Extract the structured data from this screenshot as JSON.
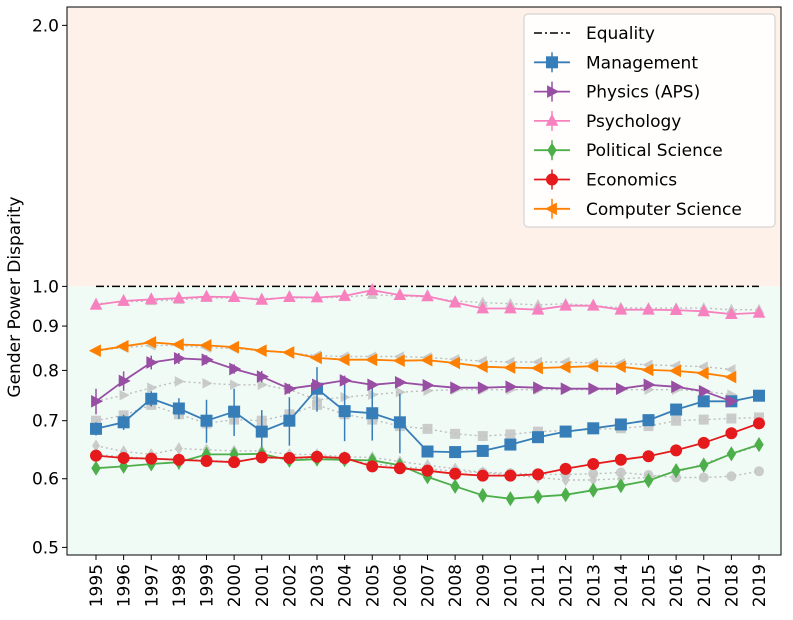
{
  "chart_data": {
    "type": "line",
    "ylabel": "Gender Power Disparity",
    "y_scale": "log",
    "ylim": [
      0.49,
      2.1
    ],
    "yticks": [
      0.5,
      0.6,
      0.7,
      0.8,
      0.9,
      1.0,
      2.0
    ],
    "ytick_labels": [
      "0.5",
      "0.6",
      "0.7",
      "0.8",
      "0.9",
      "1.0",
      "2.0"
    ],
    "x": [
      "1995",
      "1996",
      "1997",
      "1998",
      "1999",
      "2000",
      "2001",
      "2002",
      "2003",
      "2004",
      "2005",
      "2006",
      "2007",
      "2008",
      "2009",
      "2010",
      "2011",
      "2012",
      "2013",
      "2014",
      "2015",
      "2016",
      "2017",
      "2018",
      "2019"
    ],
    "region_colors": {
      "above": "#fdf1ea",
      "below": "#f1fbf6"
    },
    "legend_position": "top-right",
    "equality": {
      "name": "Equality",
      "value": 1.0,
      "color": "#000000"
    },
    "series": [
      {
        "name": "Management",
        "color": "#377eb8",
        "marker": "s",
        "values": [
          0.685,
          0.697,
          0.742,
          0.723,
          0.7,
          0.717,
          0.68,
          0.7,
          0.762,
          0.718,
          0.714,
          0.697,
          0.645,
          0.644,
          0.646,
          0.657,
          0.67,
          0.68,
          0.686,
          0.693,
          0.701,
          0.721,
          0.737,
          0.737,
          0.748
        ],
        "errors": [
          0.012,
          0.014,
          0.015,
          0.02,
          0.04,
          0.045,
          0.04,
          0.045,
          0.045,
          0.055,
          0.05,
          0.055,
          0.006,
          0.006,
          0.006,
          0.008,
          0.01,
          0.006,
          0.006,
          0.006,
          0.008,
          0.008,
          0.008,
          0.006,
          0.006
        ],
        "baseline": [
          0.7,
          0.71,
          0.73,
          0.712,
          0.695,
          0.702,
          0.7,
          0.712,
          0.73,
          0.712,
          0.702,
          0.69,
          0.685,
          0.676,
          0.672,
          0.675,
          0.68,
          0.682,
          0.684,
          0.686,
          0.69,
          0.7,
          0.702,
          0.704,
          0.706
        ]
      },
      {
        "name": "Physics (APS)",
        "color": "#984ea3",
        "marker": ">",
        "values": [
          0.737,
          0.778,
          0.817,
          0.826,
          0.823,
          0.803,
          0.787,
          0.762,
          0.77,
          0.779,
          0.77,
          0.775,
          0.769,
          0.764,
          0.764,
          0.766,
          0.764,
          0.762,
          0.762,
          0.762,
          0.77,
          0.766,
          0.757,
          0.737,
          null
        ],
        "errors": [
          0.025,
          0.02,
          0.015,
          0.012,
          0.01,
          0.01,
          0.012,
          0.01,
          0.01,
          0.01,
          0.008,
          0.008,
          0.006,
          0.006,
          0.006,
          0.006,
          0.006,
          0.006,
          0.006,
          0.006,
          0.006,
          0.006,
          0.006,
          0.006,
          null
        ],
        "baseline": [
          0.737,
          0.749,
          0.764,
          0.777,
          0.773,
          0.77,
          0.77,
          0.76,
          0.74,
          0.745,
          0.75,
          0.755,
          0.758,
          0.76,
          0.76,
          0.76,
          0.76,
          0.76,
          0.76,
          0.76,
          0.76,
          0.76,
          0.757,
          0.75,
          null
        ]
      },
      {
        "name": "Psychology",
        "color": "#f781bf",
        "marker": "^",
        "values": [
          0.952,
          0.962,
          0.966,
          0.969,
          0.973,
          0.972,
          0.965,
          0.972,
          0.971,
          0.975,
          0.99,
          0.977,
          0.974,
          0.958,
          0.943,
          0.943,
          0.94,
          0.95,
          0.95,
          0.94,
          0.94,
          0.939,
          0.936,
          0.929,
          0.932
        ],
        "errors": [
          0.005,
          0.004,
          0.004,
          0.004,
          0.004,
          0.004,
          0.004,
          0.004,
          0.004,
          0.004,
          0.004,
          0.004,
          0.004,
          0.004,
          0.004,
          0.004,
          0.004,
          0.004,
          0.004,
          0.004,
          0.004,
          0.004,
          0.004,
          0.004,
          0.004
        ],
        "baseline": [
          0.955,
          0.96,
          0.962,
          0.965,
          0.97,
          0.97,
          0.968,
          0.97,
          0.97,
          0.972,
          0.978,
          0.975,
          0.972,
          0.962,
          0.958,
          0.955,
          0.952,
          0.955,
          0.95,
          0.945,
          0.944,
          0.944,
          0.944,
          0.94,
          0.94
        ]
      },
      {
        "name": "Political Science",
        "color": "#4daf4a",
        "marker": "d",
        "values": [
          0.617,
          0.62,
          0.624,
          0.627,
          0.64,
          0.64,
          0.641,
          0.63,
          0.632,
          0.631,
          0.63,
          0.622,
          0.603,
          0.588,
          0.574,
          0.569,
          0.572,
          0.575,
          0.582,
          0.589,
          0.597,
          0.613,
          0.622,
          0.641,
          0.657
        ],
        "errors": [
          0.01,
          0.01,
          0.01,
          0.012,
          0.012,
          0.01,
          0.01,
          0.008,
          0.008,
          0.008,
          0.008,
          0.008,
          0.008,
          0.006,
          0.006,
          0.006,
          0.006,
          0.006,
          0.006,
          0.006,
          0.006,
          0.006,
          0.006,
          0.006,
          0.008
        ],
        "baseline": [
          0.655,
          0.645,
          0.64,
          0.65,
          0.648,
          0.646,
          0.646,
          0.64,
          0.64,
          0.636,
          0.635,
          0.628,
          0.622,
          0.616,
          0.61,
          0.606,
          0.602,
          0.598,
          0.598,
          0.6,
          0.602,
          0.61,
          0.625,
          0.64,
          0.655
        ]
      },
      {
        "name": "Economics",
        "color": "#e41a1c",
        "marker": "o",
        "values": [
          0.638,
          0.634,
          0.633,
          0.631,
          0.629,
          0.627,
          0.635,
          0.634,
          0.636,
          0.634,
          0.62,
          0.617,
          0.613,
          0.608,
          0.605,
          0.605,
          0.607,
          0.616,
          0.624,
          0.631,
          0.637,
          0.647,
          0.66,
          0.677,
          0.695
        ],
        "errors": [
          0.005,
          0.005,
          0.005,
          0.005,
          0.005,
          0.005,
          0.005,
          0.005,
          0.005,
          0.005,
          0.005,
          0.005,
          0.005,
          0.005,
          0.005,
          0.005,
          0.005,
          0.005,
          0.005,
          0.005,
          0.005,
          0.005,
          0.005,
          0.005,
          0.005
        ],
        "baseline": [
          0.64,
          0.636,
          0.633,
          0.632,
          0.63,
          0.628,
          0.634,
          0.633,
          0.634,
          0.632,
          0.624,
          0.62,
          0.616,
          0.612,
          0.61,
          0.609,
          0.607,
          0.607,
          0.608,
          0.61,
          0.606,
          0.602,
          0.602,
          0.604,
          0.612
        ]
      },
      {
        "name": "Computer Science",
        "color": "#ff7f00",
        "marker": "<",
        "values": [
          0.843,
          0.853,
          0.862,
          0.857,
          0.855,
          0.851,
          0.843,
          0.839,
          0.827,
          0.823,
          0.823,
          0.821,
          0.822,
          0.816,
          0.808,
          0.806,
          0.805,
          0.807,
          0.809,
          0.808,
          0.801,
          0.799,
          0.794,
          0.786,
          null
        ],
        "errors": [
          0.004,
          0.004,
          0.004,
          0.004,
          0.004,
          0.004,
          0.004,
          0.004,
          0.004,
          0.004,
          0.004,
          0.004,
          0.004,
          0.004,
          0.004,
          0.004,
          0.004,
          0.004,
          0.004,
          0.004,
          0.004,
          0.004,
          0.004,
          0.004,
          null
        ],
        "baseline": [
          0.843,
          0.85,
          0.855,
          0.855,
          0.85,
          0.848,
          0.843,
          0.838,
          0.832,
          0.83,
          0.83,
          0.83,
          0.828,
          0.824,
          0.82,
          0.818,
          0.818,
          0.818,
          0.816,
          0.815,
          0.812,
          0.81,
          0.808,
          0.802,
          null
        ]
      }
    ]
  }
}
